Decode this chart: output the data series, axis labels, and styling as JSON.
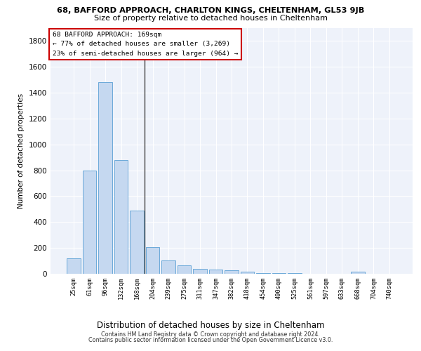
{
  "title_line1": "68, BAFFORD APPROACH, CHARLTON KINGS, CHELTENHAM, GL53 9JB",
  "title_line2": "Size of property relative to detached houses in Cheltenham",
  "xlabel": "Distribution of detached houses by size in Cheltenham",
  "ylabel": "Number of detached properties",
  "categories": [
    "25sqm",
    "61sqm",
    "96sqm",
    "132sqm",
    "168sqm",
    "204sqm",
    "239sqm",
    "275sqm",
    "311sqm",
    "347sqm",
    "382sqm",
    "418sqm",
    "454sqm",
    "490sqm",
    "525sqm",
    "561sqm",
    "597sqm",
    "633sqm",
    "668sqm",
    "704sqm",
    "740sqm"
  ],
  "values": [
    120,
    800,
    1480,
    880,
    490,
    205,
    105,
    65,
    40,
    30,
    25,
    15,
    5,
    5,
    3,
    2,
    2,
    2,
    15,
    2,
    0
  ],
  "bar_color": "#c5d8f0",
  "bar_edge_color": "#5a9fd4",
  "vline_index": 4,
  "vline_color": "#444444",
  "annotation_text": "68 BAFFORD APPROACH: 169sqm\n← 77% of detached houses are smaller (3,269)\n23% of semi-detached houses are larger (964) →",
  "annotation_box_color": "#ffffff",
  "annotation_box_edge_color": "#cc0000",
  "ylim": [
    0,
    1900
  ],
  "yticks": [
    0,
    200,
    400,
    600,
    800,
    1000,
    1200,
    1400,
    1600,
    1800
  ],
  "background_color": "#eef2fa",
  "grid_color": "#ffffff",
  "footer1": "Contains HM Land Registry data © Crown copyright and database right 2024.",
  "footer2": "Contains public sector information licensed under the Open Government Licence v3.0."
}
